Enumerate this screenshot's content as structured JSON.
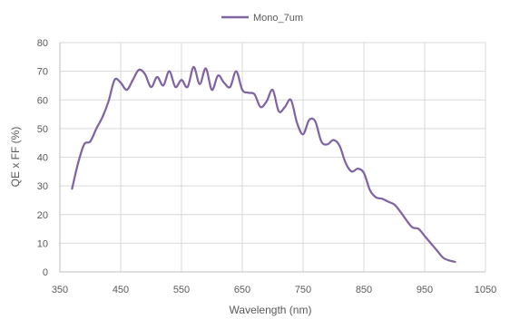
{
  "chart_data": {
    "type": "line",
    "xlabel": "Wavelength (nm)",
    "ylabel": "QE x FF (%)",
    "xlim": [
      350,
      1050
    ],
    "ylim": [
      0,
      80
    ],
    "x_ticks": [
      350,
      450,
      550,
      650,
      750,
      850,
      950,
      1050
    ],
    "y_ticks": [
      0,
      10,
      20,
      30,
      40,
      50,
      60,
      70,
      80
    ],
    "grid": "vertical and horizontal major gridlines",
    "legend_position": "top-center",
    "series": [
      {
        "name": "Mono_7um",
        "color": "#8064a2",
        "points": [
          [
            370,
            29
          ],
          [
            380,
            38
          ],
          [
            390,
            44.5
          ],
          [
            400,
            45.5
          ],
          [
            410,
            50
          ],
          [
            420,
            54
          ],
          [
            430,
            59.5
          ],
          [
            440,
            67
          ],
          [
            450,
            66
          ],
          [
            460,
            63.5
          ],
          [
            470,
            67
          ],
          [
            480,
            70.5
          ],
          [
            490,
            69
          ],
          [
            500,
            64.5
          ],
          [
            510,
            68
          ],
          [
            520,
            65
          ],
          [
            530,
            70
          ],
          [
            540,
            64.5
          ],
          [
            550,
            67
          ],
          [
            560,
            64.5
          ],
          [
            570,
            71.5
          ],
          [
            580,
            65.5
          ],
          [
            590,
            71
          ],
          [
            600,
            63.5
          ],
          [
            610,
            68.5
          ],
          [
            620,
            66
          ],
          [
            630,
            64.5
          ],
          [
            640,
            70
          ],
          [
            650,
            63.5
          ],
          [
            660,
            62.5
          ],
          [
            670,
            62
          ],
          [
            680,
            57.5
          ],
          [
            690,
            59.5
          ],
          [
            700,
            63.5
          ],
          [
            710,
            56
          ],
          [
            720,
            57.5
          ],
          [
            730,
            60
          ],
          [
            740,
            52
          ],
          [
            750,
            48
          ],
          [
            760,
            53
          ],
          [
            770,
            52.5
          ],
          [
            780,
            45.5
          ],
          [
            790,
            44.5
          ],
          [
            800,
            46
          ],
          [
            810,
            44
          ],
          [
            820,
            38
          ],
          [
            830,
            35
          ],
          [
            840,
            36
          ],
          [
            850,
            34.5
          ],
          [
            860,
            28.5
          ],
          [
            870,
            26
          ],
          [
            880,
            25.5
          ],
          [
            890,
            24.5
          ],
          [
            900,
            23.5
          ],
          [
            910,
            21
          ],
          [
            920,
            18
          ],
          [
            930,
            15.5
          ],
          [
            940,
            15
          ],
          [
            950,
            12.5
          ],
          [
            960,
            10
          ],
          [
            970,
            7.5
          ],
          [
            980,
            5
          ],
          [
            990,
            4
          ],
          [
            1000,
            3.5
          ]
        ]
      }
    ]
  }
}
